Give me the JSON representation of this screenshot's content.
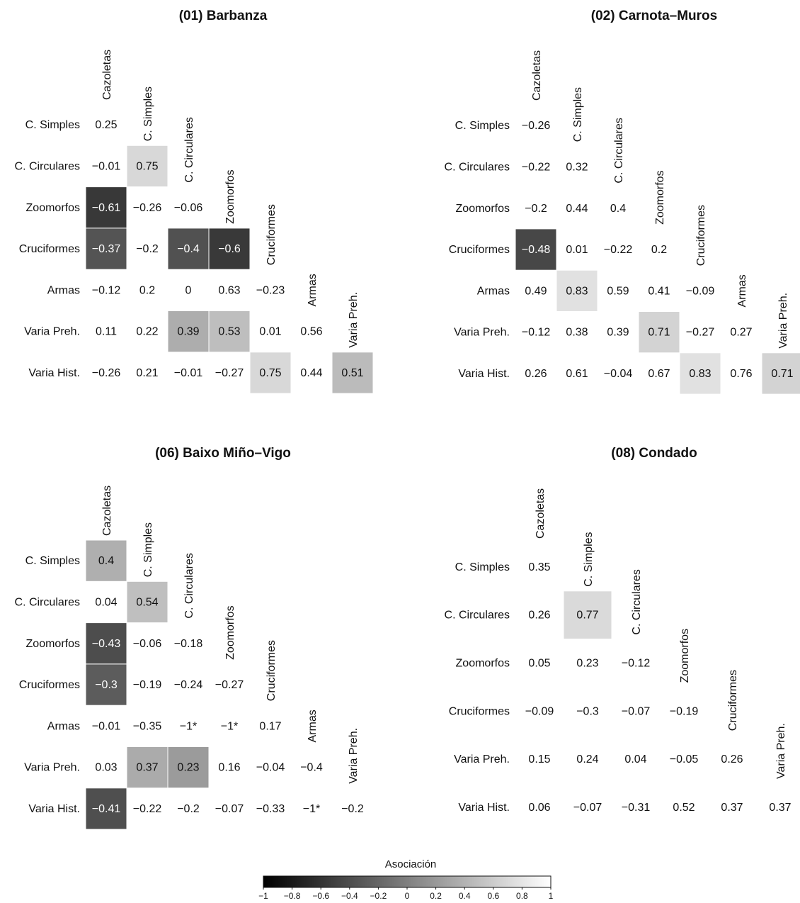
{
  "chart_data": [
    {
      "type": "heatmap",
      "title": "(01) Barbanza",
      "rows": [
        "C. Simples",
        "C. Circulares",
        "Zoomorfos",
        "Cruciformes",
        "Armas",
        "Varia Preh.",
        "Varia Hist."
      ],
      "columns": [
        "Cazoletas",
        "C. Simples",
        "C. Circulares",
        "Zoomorfos",
        "Cruciformes",
        "Armas",
        "Varia Preh."
      ],
      "labels": [
        [
          "0.25"
        ],
        [
          "−0.01",
          "0.75"
        ],
        [
          "−0.61",
          "−0.26",
          "−0.06"
        ],
        [
          "−0.37",
          "−0.2",
          "−0.4",
          "−0.6"
        ],
        [
          "−0.12",
          "0.2",
          "0",
          "0.63",
          "−0.23"
        ],
        [
          "0.11",
          "0.22",
          "0.39",
          "0.53",
          "0.01",
          "0.56"
        ],
        [
          "−0.26",
          "0.21",
          "−0.01",
          "−0.27",
          "0.75",
          "0.44",
          "0.51"
        ]
      ],
      "values": [
        [
          0.25
        ],
        [
          -0.01,
          0.75
        ],
        [
          -0.61,
          -0.26,
          -0.06
        ],
        [
          -0.37,
          -0.2,
          -0.4,
          -0.6
        ],
        [
          -0.12,
          0.2,
          0,
          0.63,
          -0.23
        ],
        [
          0.11,
          0.22,
          0.39,
          0.53,
          0.01,
          0.56
        ],
        [
          -0.26,
          0.21,
          -0.01,
          -0.27,
          0.75,
          0.44,
          0.51
        ]
      ],
      "shaded": [
        [
          false
        ],
        [
          false,
          true
        ],
        [
          true,
          false,
          false
        ],
        [
          true,
          false,
          true,
          true
        ],
        [
          false,
          false,
          false,
          false,
          false
        ],
        [
          false,
          false,
          true,
          true,
          false,
          false
        ],
        [
          false,
          false,
          false,
          false,
          true,
          false,
          true
        ]
      ]
    },
    {
      "type": "heatmap",
      "title": "(02) Carnota–Muros",
      "rows": [
        "C. Simples",
        "C. Circulares",
        "Zoomorfos",
        "Cruciformes",
        "Armas",
        "Varia Preh.",
        "Varia Hist."
      ],
      "columns": [
        "Cazoletas",
        "C. Simples",
        "C. Circulares",
        "Zoomorfos",
        "Cruciformes",
        "Armas",
        "Varia Preh."
      ],
      "labels": [
        [
          "−0.26"
        ],
        [
          "−0.22",
          "0.32"
        ],
        [
          "−0.2",
          "0.44",
          "0.4"
        ],
        [
          "−0.48",
          "0.01",
          "−0.22",
          "0.2"
        ],
        [
          "0.49",
          "0.83",
          "0.59",
          "0.41",
          "−0.09"
        ],
        [
          "−0.12",
          "0.38",
          "0.39",
          "0.71",
          "−0.27",
          "0.27"
        ],
        [
          "0.26",
          "0.61",
          "−0.04",
          "0.67",
          "0.83",
          "0.76",
          "0.71"
        ]
      ],
      "values": [
        [
          -0.26
        ],
        [
          -0.22,
          0.32
        ],
        [
          -0.2,
          0.44,
          0.4
        ],
        [
          -0.48,
          0.01,
          -0.22,
          0.2
        ],
        [
          0.49,
          0.83,
          0.59,
          0.41,
          -0.09
        ],
        [
          -0.12,
          0.38,
          0.39,
          0.71,
          -0.27,
          0.27
        ],
        [
          0.26,
          0.61,
          -0.04,
          0.67,
          0.83,
          0.76,
          0.71
        ]
      ],
      "shaded": [
        [
          false
        ],
        [
          false,
          false
        ],
        [
          false,
          false,
          false
        ],
        [
          true,
          false,
          false,
          false
        ],
        [
          false,
          true,
          false,
          false,
          false
        ],
        [
          false,
          false,
          false,
          true,
          false,
          false
        ],
        [
          false,
          false,
          false,
          false,
          true,
          false,
          true
        ]
      ]
    },
    {
      "type": "heatmap",
      "title": "(06) Baixo Miño–Vigo",
      "rows": [
        "C. Simples",
        "C. Circulares",
        "Zoomorfos",
        "Cruciformes",
        "Armas",
        "Varia Preh.",
        "Varia Hist."
      ],
      "columns": [
        "Cazoletas",
        "C. Simples",
        "C. Circulares",
        "Zoomorfos",
        "Cruciformes",
        "Armas",
        "Varia Preh."
      ],
      "labels": [
        [
          "0.4"
        ],
        [
          "0.04",
          "0.54"
        ],
        [
          "−0.43",
          "−0.06",
          "−0.18"
        ],
        [
          "−0.3",
          "−0.19",
          "−0.24",
          "−0.27"
        ],
        [
          "−0.01",
          "−0.35",
          "−1*",
          "−1*",
          "0.17"
        ],
        [
          "0.03",
          "0.37",
          "0.23",
          "0.16",
          "−0.04",
          "−0.4"
        ],
        [
          "−0.41",
          "−0.22",
          "−0.2",
          "−0.07",
          "−0.33",
          "−1*",
          "−0.2"
        ]
      ],
      "values": [
        [
          0.4
        ],
        [
          0.04,
          0.54
        ],
        [
          -0.43,
          -0.06,
          -0.18
        ],
        [
          -0.3,
          -0.19,
          -0.24,
          -0.27
        ],
        [
          -0.01,
          -0.35,
          -1,
          -1,
          0.17
        ],
        [
          0.03,
          0.37,
          0.23,
          0.16,
          -0.04,
          -0.4
        ],
        [
          -0.41,
          -0.22,
          -0.2,
          -0.07,
          -0.33,
          -1,
          -0.2
        ]
      ],
      "shaded": [
        [
          true
        ],
        [
          false,
          true
        ],
        [
          true,
          false,
          false
        ],
        [
          true,
          false,
          false,
          false
        ],
        [
          false,
          false,
          false,
          false,
          false
        ],
        [
          false,
          true,
          true,
          false,
          false,
          false
        ],
        [
          true,
          false,
          false,
          false,
          false,
          false,
          false
        ]
      ]
    },
    {
      "type": "heatmap",
      "title": "(08) Condado",
      "rows": [
        "C. Simples",
        "C. Circulares",
        "Zoomorfos",
        "Cruciformes",
        "Varia Preh.",
        "Varia Hist."
      ],
      "columns": [
        "Cazoletas",
        "C. Simples",
        "C. Circulares",
        "Zoomorfos",
        "Cruciformes",
        "Varia Preh."
      ],
      "labels": [
        [
          "0.35"
        ],
        [
          "0.26",
          "0.77"
        ],
        [
          "0.05",
          "0.23",
          "−0.12"
        ],
        [
          "−0.09",
          "−0.3",
          "−0.07",
          "−0.19"
        ],
        [
          "0.15",
          "0.24",
          "0.04",
          "−0.05",
          "0.26"
        ],
        [
          "0.06",
          "−0.07",
          "−0.31",
          "0.52",
          "0.37",
          "0.37"
        ]
      ],
      "values": [
        [
          0.35
        ],
        [
          0.26,
          0.77
        ],
        [
          0.05,
          0.23,
          -0.12
        ],
        [
          -0.09,
          -0.3,
          -0.07,
          -0.19
        ],
        [
          0.15,
          0.24,
          0.04,
          -0.05,
          0.26
        ],
        [
          0.06,
          -0.07,
          -0.31,
          0.52,
          0.37,
          0.37
        ]
      ],
      "shaded": [
        [
          false
        ],
        [
          false,
          true
        ],
        [
          false,
          false,
          false
        ],
        [
          false,
          false,
          false,
          false
        ],
        [
          false,
          false,
          false,
          false,
          false
        ],
        [
          false,
          false,
          false,
          false,
          false,
          false
        ]
      ]
    }
  ],
  "legend": {
    "title": "Asociación",
    "range": [
      -1,
      1
    ],
    "ticks": [
      "−1",
      "−0.8",
      "−0.6",
      "−0.4",
      "−0.2",
      "0",
      "0.2",
      "0.4",
      "0.6",
      "0.8",
      "1"
    ],
    "tick_values": [
      -1,
      -0.8,
      -0.6,
      -0.4,
      -0.2,
      0,
      0.2,
      0.4,
      0.6,
      0.8,
      1
    ]
  },
  "colors": {
    "low": "#000000",
    "high": "#ffffff"
  }
}
